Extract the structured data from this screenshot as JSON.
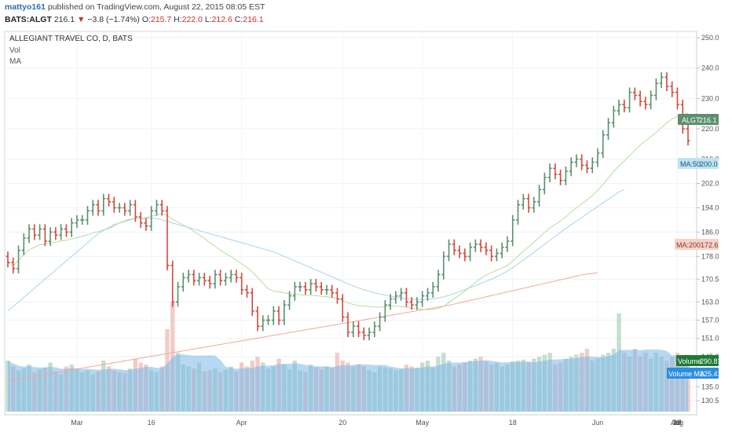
{
  "header": {
    "author": "mattyo161",
    "published_text": "published on TradingView.com, August 22, 2015 08:05 EST",
    "symbol": "BATS:ALGT",
    "last": "216.1",
    "change_arrow": "▼",
    "change": "−3.8 (−1.74%)",
    "o_label": "O:",
    "o_value": "215.7",
    "h_label": "H:",
    "h_value": "222.0",
    "l_label": "L:",
    "l_value": "212.6",
    "c_label": "C:",
    "c_value": "216.1"
  },
  "legend": {
    "title": "ALLEGIANT TRAVEL CO, D, BATS",
    "vol": "Vol",
    "ma": "MA"
  },
  "badges": {
    "price": {
      "label": "ALGT",
      "value": "216.1"
    },
    "ma50": {
      "label": "MA:50",
      "value": "200.0"
    },
    "ma200": {
      "label": "MA:200",
      "value": "172.6"
    },
    "volume": {
      "label": "Volume",
      "value": "290.811K"
    },
    "volume_ma": {
      "label": "Volume MA",
      "value": "225.418K"
    }
  },
  "colors": {
    "up": "#5b8f6e",
    "down": "#d24a3c",
    "ma20": "#b9dba0",
    "ma50": "#a8d4ea",
    "ma200": "#f0a898",
    "vol_up": "#bcd8c8",
    "vol_down": "#ecc4c0",
    "vol_area": "#7ab8e8",
    "badge_price": "#5b8f6e",
    "badge_ma50": "#bfe3f3",
    "badge_ma200": "#f8d2c8",
    "badge_volume": "#1f7a35",
    "badge_volma": "#2b8fe0"
  },
  "chart_data": {
    "type": "candlestick",
    "title": "ALLEGIANT TRAVEL CO, D, BATS",
    "y_ticks": [
      "250.0",
      "240.0",
      "230.0",
      "220.0",
      "210.0",
      "202.0",
      "194.0",
      "186.0",
      "178.0",
      "170.5",
      "163.0",
      "157.0",
      "151.0",
      "145.0",
      "140.0",
      "135.0",
      "130.5"
    ],
    "x_ticks": [
      "Mar",
      "16",
      "Apr",
      "20",
      "May",
      "18",
      "Jun",
      "15",
      "Jul",
      "20",
      "Aug",
      "17"
    ],
    "ylim": [
      130.5,
      250
    ],
    "closes": [
      176,
      174,
      180,
      184,
      187,
      185,
      187,
      183,
      186,
      185,
      187,
      186,
      189,
      190,
      190,
      193,
      195,
      193,
      197,
      196,
      194,
      194,
      193,
      195,
      191,
      189,
      188,
      193,
      195,
      193,
      175,
      163,
      168,
      171,
      172,
      170,
      171,
      170,
      169,
      172,
      170,
      171,
      172,
      171,
      167,
      166,
      160,
      155,
      157,
      157,
      160,
      157,
      162,
      165,
      168,
      168,
      167,
      169,
      168,
      167,
      167,
      166,
      164,
      158,
      153,
      155,
      153,
      152,
      153,
      155,
      158,
      162,
      164,
      165,
      166,
      163,
      162,
      163,
      165,
      166,
      168,
      172,
      178,
      182,
      180,
      179,
      178,
      181,
      182,
      181,
      180,
      178,
      179,
      181,
      183,
      190,
      195,
      197,
      194,
      196,
      200,
      204,
      207,
      205,
      203,
      206,
      209,
      210,
      208,
      207,
      209,
      212,
      218,
      222,
      226,
      228,
      227,
      232,
      231,
      229,
      228,
      231,
      235,
      237,
      234,
      232,
      228,
      220,
      216.1
    ],
    "ma50": [
      160,
      161.5,
      163,
      164.5,
      166,
      167.5,
      169,
      170.5,
      172,
      173.5,
      175,
      176.5,
      178,
      179.5,
      181,
      182.5,
      184,
      185.5,
      186.5,
      187.5,
      188.5,
      189,
      189.5,
      190,
      190.5,
      190.5,
      190.5,
      190.5,
      190.5,
      190,
      189.5,
      189,
      188.5,
      188,
      187.5,
      187,
      186.5,
      186,
      185.5,
      185,
      184.5,
      184,
      183.5,
      183,
      182.5,
      182,
      181.5,
      181,
      180.5,
      180,
      179.5,
      178.8,
      178,
      177.3,
      176.5,
      175.8,
      175,
      174.3,
      173.5,
      172.8,
      172,
      171.3,
      170.5,
      169.8,
      169,
      168.3,
      167.6,
      167,
      166.5,
      166,
      165.6,
      165.2,
      164.9,
      164.6,
      164.3,
      164.1,
      163.9,
      163.8,
      163.8,
      163.9,
      164,
      164.3,
      164.7,
      165.2,
      165.8,
      166.4,
      167,
      167.7,
      168.4,
      169.1,
      169.8,
      170.5,
      171.3,
      172.2,
      173.2,
      174.3,
      175.5,
      176.8,
      178.1,
      179.4,
      180.7,
      182,
      183.3,
      184.6,
      185.9,
      187.2,
      188.4,
      189.6,
      190.8,
      192,
      193.2,
      194.4,
      195.6,
      196.8,
      198,
      199.2,
      200
    ],
    "ma200": [
      137,
      137.3,
      137.6,
      137.9,
      138.2,
      138.5,
      138.8,
      139.1,
      139.4,
      139.7,
      140,
      140.3,
      140.6,
      140.9,
      141.2,
      141.5,
      141.8,
      142.1,
      142.4,
      142.7,
      143,
      143.3,
      143.6,
      143.9,
      144.2,
      144.5,
      144.8,
      145.1,
      145.4,
      145.7,
      146,
      146.3,
      146.6,
      146.9,
      147.2,
      147.5,
      147.8,
      148.1,
      148.4,
      148.7,
      149,
      149.3,
      149.6,
      149.9,
      150.2,
      150.5,
      150.8,
      151.1,
      151.4,
      151.7,
      152,
      152.3,
      152.6,
      152.9,
      153.2,
      153.5,
      153.8,
      154.1,
      154.4,
      154.7,
      155,
      155.3,
      155.6,
      155.9,
      156.2,
      156.5,
      156.8,
      157.1,
      157.4,
      157.7,
      158,
      158.3,
      158.6,
      158.9,
      159.2,
      159.5,
      159.8,
      160.1,
      160.4,
      160.7,
      161,
      161.3,
      161.6,
      161.9,
      162.3,
      162.7,
      163.1,
      163.5,
      163.9,
      164.3,
      164.7,
      165.1,
      165.5,
      165.9,
      166.3,
      166.7,
      167.1,
      167.5,
      167.9,
      168.3,
      168.7,
      169.1,
      169.5,
      169.9,
      170.3,
      170.7,
      171.1,
      171.5,
      171.9,
      172.2,
      172.4,
      172.6
    ],
    "volume_k": [
      260,
      230,
      210,
      220,
      240,
      200,
      215,
      225,
      250,
      205,
      190,
      230,
      240,
      215,
      200,
      210,
      190,
      205,
      260,
      230,
      210,
      200,
      195,
      220,
      270,
      250,
      240,
      210,
      200,
      230,
      420,
      560,
      300,
      240,
      230,
      220,
      250,
      205,
      210,
      220,
      200,
      215,
      230,
      205,
      250,
      230,
      260,
      280,
      250,
      220,
      230,
      270,
      240,
      215,
      260,
      210,
      200,
      240,
      225,
      215,
      230,
      225,
      300,
      260,
      250,
      230,
      240,
      230,
      210,
      200,
      230,
      225,
      220,
      210,
      215,
      240,
      230,
      225,
      250,
      260,
      225,
      280,
      300,
      260,
      230,
      240,
      250,
      260,
      270,
      280,
      255,
      240,
      250,
      230,
      240,
      255,
      260,
      265,
      255,
      270,
      280,
      290,
      300,
      240,
      250,
      270,
      280,
      290,
      300,
      320,
      260,
      270,
      290,
      300,
      320,
      500,
      300,
      280,
      320,
      280,
      300,
      270,
      300,
      280,
      260,
      280,
      300,
      280,
      290.8
    ],
    "volume_ma_k": 225.418
  }
}
